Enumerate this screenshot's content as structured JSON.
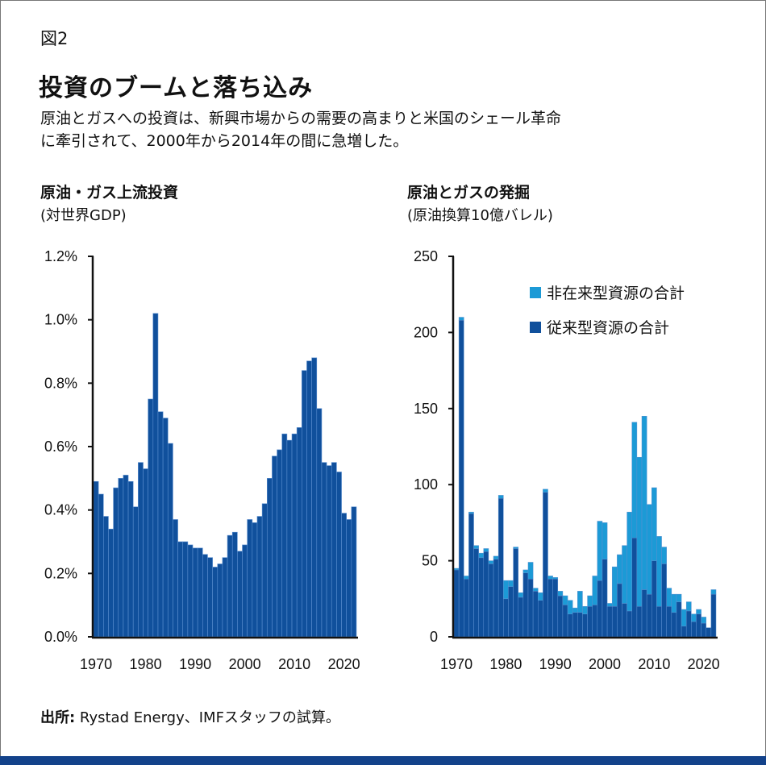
{
  "figure_label": "図2",
  "title": "投資のブームと落ち込み",
  "subtitle_lines": [
    "原油とガスへの投資は、新興市場からの需要の高まりと米国のシェール革命",
    "に牽引されて、2000年から2014年の間に急増した。"
  ],
  "source": {
    "label": "出所:",
    "text": " Rystad Energy、IMFスタッフの試算。"
  },
  "colors": {
    "conventional": "#10509c",
    "unconventional": "#1c9ad6",
    "bar_edge": "#5b8fd0",
    "bottom_bar": "#13428a"
  },
  "chart_data": [
    {
      "type": "bar",
      "title": "原油・ガス上流投資",
      "subtitle": "(対世界GDP)",
      "xlabel": "",
      "ylabel": "",
      "ylim": [
        0,
        1.2
      ],
      "yticks": [
        "0.0%",
        "0.2%",
        "0.4%",
        "0.6%",
        "0.8%",
        "1.0%",
        "1.2%"
      ],
      "xticks": [
        "1970",
        "1980",
        "1990",
        "2000",
        "2010",
        "2020"
      ],
      "x_start": 1970,
      "values": [
        0.49,
        0.45,
        0.38,
        0.34,
        0.47,
        0.5,
        0.51,
        0.49,
        0.41,
        0.55,
        0.53,
        0.75,
        1.02,
        0.71,
        0.69,
        0.61,
        0.37,
        0.3,
        0.3,
        0.29,
        0.28,
        0.28,
        0.26,
        0.25,
        0.22,
        0.23,
        0.25,
        0.32,
        0.33,
        0.27,
        0.29,
        0.37,
        0.36,
        0.38,
        0.42,
        0.5,
        0.57,
        0.59,
        0.64,
        0.62,
        0.64,
        0.66,
        0.84,
        0.87,
        0.88,
        0.72,
        0.55,
        0.54,
        0.55,
        0.52,
        0.39,
        0.37,
        0.41
      ],
      "grid": false
    },
    {
      "type": "bar",
      "stacked": true,
      "title": "原油とガスの発掘",
      "subtitle": "(原油換算10億バレル)",
      "xlabel": "",
      "ylabel": "",
      "ylim": [
        0,
        250
      ],
      "yticks": [
        "0",
        "50",
        "100",
        "150",
        "200",
        "250"
      ],
      "xticks": [
        "1970",
        "1980",
        "1990",
        "2000",
        "2010",
        "2020"
      ],
      "x_start": 1970,
      "legend_position": "top-right",
      "series": [
        {
          "name": "従来型資源の合計",
          "values": [
            44,
            208,
            38,
            81,
            58,
            52,
            56,
            48,
            51,
            91,
            25,
            33,
            58,
            26,
            42,
            38,
            30,
            24,
            95,
            38,
            38,
            27,
            21,
            15,
            16,
            16,
            15,
            20,
            21,
            37,
            51,
            20,
            20,
            35,
            22,
            17,
            65,
            20,
            31,
            28,
            50,
            20,
            48,
            20,
            16,
            23,
            7,
            17,
            10,
            15,
            9,
            6,
            28
          ]
        },
        {
          "name": "非在来型資源の合計",
          "values": [
            1,
            2,
            2,
            1,
            2,
            3,
            2,
            2,
            2,
            2,
            12,
            4,
            1,
            3,
            2,
            11,
            2,
            5,
            2,
            2,
            1,
            3,
            6,
            9,
            3,
            14,
            5,
            7,
            19,
            39,
            24,
            2,
            26,
            19,
            38,
            65,
            76,
            98,
            114,
            59,
            48,
            46,
            11,
            12,
            12,
            5,
            11,
            6,
            5,
            3,
            4,
            0,
            3
          ]
        }
      ],
      "grid": false
    }
  ]
}
